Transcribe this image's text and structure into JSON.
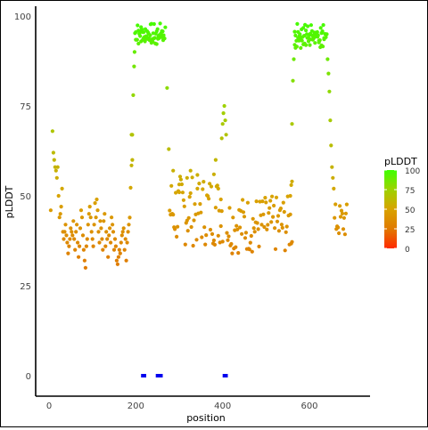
{
  "chart_data": {
    "type": "scatter",
    "xlabel": "position",
    "ylabel": "pLDDT",
    "xlim": [
      -20,
      720
    ],
    "ylim": [
      -5,
      100
    ],
    "x_ticks": [
      0,
      200,
      400,
      600
    ],
    "x_tick_labels": [
      "0",
      "200",
      "400",
      "600"
    ],
    "y_ticks": [
      0,
      25,
      50,
      75,
      100
    ],
    "y_tick_labels": [
      "0",
      "25",
      "50",
      "75",
      "100"
    ],
    "grid": false,
    "legend": {
      "title": "pLDDT",
      "position": "right",
      "ticks": [
        "100",
        "75",
        "50",
        "25",
        "0"
      ],
      "gradient": [
        "#ff2a00",
        "#e07a00",
        "#d8a300",
        "#9ed200",
        "#3dff00"
      ]
    },
    "point_color_scale": {
      "low": 0,
      "high": 100,
      "low_color": "#ff2a00",
      "high_color": "#3dff00"
    },
    "markers": {
      "color": "#0000ee",
      "value": 0,
      "ranges": [
        [
          212,
          224
        ],
        [
          246,
          262
        ],
        [
          400,
          412
        ]
      ]
    },
    "series": [
      {
        "values_y": [
          46,
          68,
          62,
          60,
          58,
          57,
          55,
          58,
          50,
          44,
          45,
          47,
          52,
          40,
          38,
          40,
          42,
          39,
          37,
          34,
          36,
          38,
          41,
          40,
          39,
          43,
          38,
          35,
          40,
          42,
          37,
          33,
          36,
          41,
          46,
          44,
          39,
          35,
          32,
          30,
          36,
          38,
          42,
          45,
          47,
          44,
          40,
          38,
          36,
          42,
          48,
          44,
          49,
          46,
          40,
          37,
          43,
          41,
          38,
          35,
          43,
          45,
          36,
          40,
          38,
          33,
          39,
          41,
          37,
          44,
          42,
          40,
          35,
          38,
          36,
          32,
          31,
          33,
          35,
          34,
          37,
          39,
          40,
          41,
          35,
          38,
          32,
          37,
          40,
          42
        ],
        "values_x": [
          4,
          8,
          10,
          12,
          14,
          16,
          18,
          20,
          22,
          24,
          26,
          28,
          30,
          32,
          34,
          36,
          38,
          40,
          42,
          44,
          46,
          48,
          50,
          52,
          54,
          56,
          58,
          60,
          62,
          64,
          66,
          68,
          70,
          72,
          74,
          76,
          78,
          80,
          82,
          84,
          86,
          88,
          90,
          92,
          94,
          96,
          98,
          100,
          102,
          104,
          106,
          108,
          110,
          112,
          114,
          116,
          118,
          120,
          122,
          124,
          126,
          128,
          130,
          132,
          134,
          136,
          138,
          140,
          142,
          144,
          146,
          148,
          150,
          152,
          154,
          156,
          158,
          160,
          162,
          164,
          166,
          168,
          170,
          172,
          174,
          176,
          178,
          180,
          182,
          184
        ]
      }
    ]
  }
}
